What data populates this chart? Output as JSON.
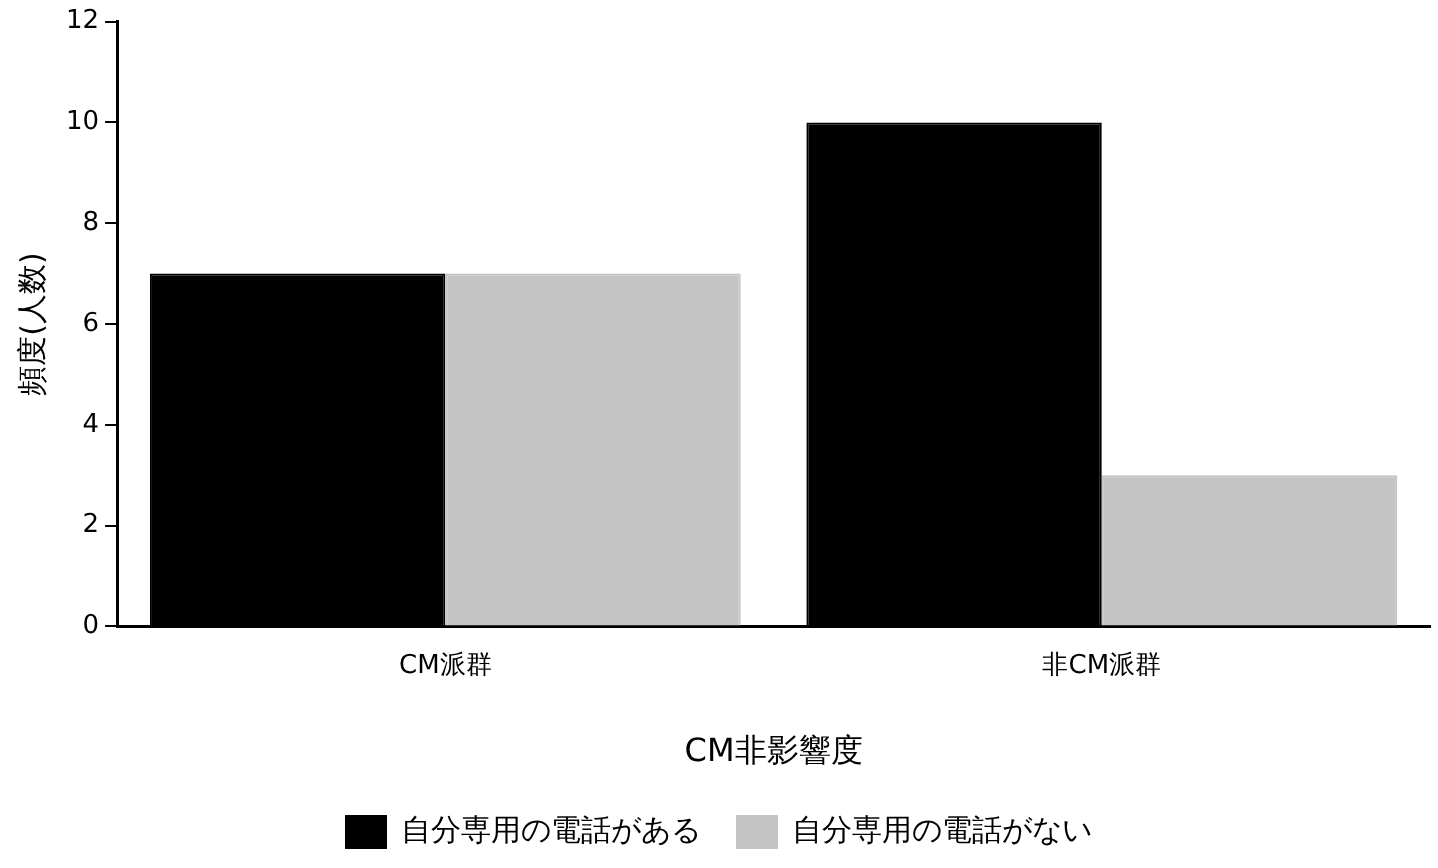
{
  "chart_data": {
    "type": "bar",
    "xlabel": "CM非影響度",
    "ylabel": "頻度(人数)",
    "categories": [
      "CM派群",
      "非CM派群"
    ],
    "series": [
      {
        "name": "自分専用の電話がある",
        "color": "#000000",
        "values": [
          7,
          10
        ]
      },
      {
        "name": "自分専用の電話がない",
        "color": "#c4c4c4",
        "values": [
          7,
          3
        ]
      }
    ],
    "ylim": [
      0,
      12
    ],
    "yticks": [
      0,
      2,
      4,
      6,
      8,
      10,
      12
    ],
    "grid": false,
    "legend": "bottom"
  }
}
